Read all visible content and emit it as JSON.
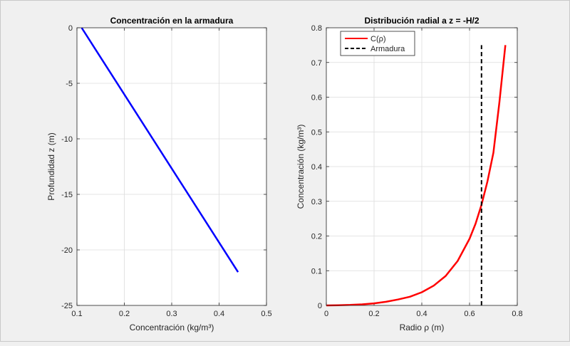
{
  "figure": {
    "background": "#f0f0f0"
  },
  "chart_data": [
    {
      "type": "line",
      "title": "Concentración en la armadura",
      "xlabel": "Concentración (kg/m³)",
      "ylabel": "Profundidad z (m)",
      "xlim": [
        0.1,
        0.5
      ],
      "ylim": [
        -25,
        0
      ],
      "xticks": [
        "0.1",
        "0.2",
        "0.3",
        "0.4",
        "0.5"
      ],
      "yticks": [
        "0",
        "-5",
        "-10",
        "-15",
        "-20",
        "-25"
      ],
      "grid": true,
      "series": [
        {
          "x": [
            0.11,
            0.44
          ],
          "y": [
            0,
            -22
          ],
          "color": "#0000ff",
          "style": "solid"
        }
      ]
    },
    {
      "type": "line",
      "title": "Distribución radial a z = -H/2",
      "xlabel": "Radio ρ (m)",
      "ylabel": "Concentración (kg/m³)",
      "xlim": [
        0,
        0.8
      ],
      "ylim": [
        0,
        0.8
      ],
      "xticks": [
        "0",
        "0.2",
        "0.4",
        "0.6",
        "0.8"
      ],
      "yticks": [
        "0",
        "0.1",
        "0.2",
        "0.3",
        "0.4",
        "0.5",
        "0.6",
        "0.7",
        "0.8"
      ],
      "grid": true,
      "legend": {
        "placement": "top-left",
        "entries": [
          "C(ρ)",
          "Armadura"
        ]
      },
      "series": [
        {
          "name": "C(ρ)",
          "color": "#ff0000",
          "style": "solid",
          "x": [
            0,
            0.05,
            0.1,
            0.15,
            0.2,
            0.25,
            0.3,
            0.35,
            0.4,
            0.45,
            0.5,
            0.55,
            0.6,
            0.625,
            0.65,
            0.675,
            0.7,
            0.725,
            0.75
          ],
          "y": [
            0,
            0.0007,
            0.0015,
            0.003,
            0.006,
            0.0105,
            0.017,
            0.025,
            0.038,
            0.057,
            0.085,
            0.128,
            0.192,
            0.235,
            0.29,
            0.357,
            0.44,
            0.585,
            0.75
          ]
        },
        {
          "name": "Armadura",
          "color": "#000000",
          "style": "dashed",
          "x": [
            0.65,
            0.65
          ],
          "y": [
            0,
            0.75
          ]
        }
      ]
    }
  ]
}
